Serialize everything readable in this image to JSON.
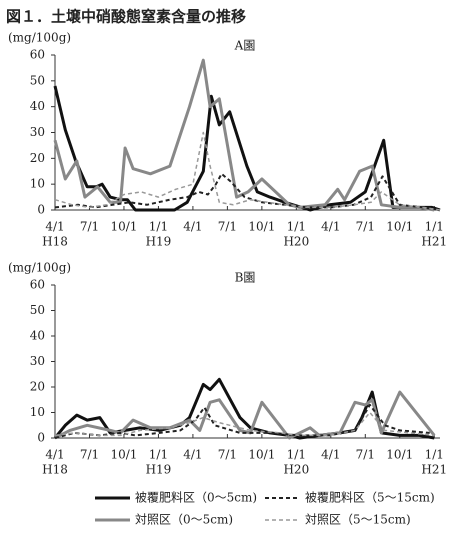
{
  "title": "図１．土壌中硝酸態窒素含量の推移",
  "chart_data": [
    {
      "type": "line",
      "title": "A園",
      "y_label": "(mg/100g)",
      "ylim": [
        0,
        60
      ],
      "yticks": [
        0,
        10,
        20,
        30,
        40,
        50,
        60
      ],
      "xlim": [
        0,
        33.5
      ],
      "xticks": [
        {
          "value": 0,
          "label": "4/1"
        },
        {
          "value": 3,
          "label": "7/1"
        },
        {
          "value": 6,
          "label": "10/1"
        },
        {
          "value": 9,
          "label": "1/1"
        },
        {
          "value": 12,
          "label": "4/1"
        },
        {
          "value": 15,
          "label": "7/1"
        },
        {
          "value": 18,
          "label": "10/1"
        },
        {
          "value": 21,
          "label": "1/1"
        },
        {
          "value": 24,
          "label": "4/1"
        },
        {
          "value": 27,
          "label": "7/1"
        },
        {
          "value": 30,
          "label": "10/1"
        },
        {
          "value": 33,
          "label": "1/1"
        }
      ],
      "year_labels": [
        {
          "value": 0,
          "label": "H18"
        },
        {
          "value": 9,
          "label": "H19"
        },
        {
          "value": 21,
          "label": "H20"
        },
        {
          "value": 33,
          "label": "H21"
        }
      ],
      "series": [
        {
          "name": "被覆肥料区（0～5cm)",
          "color": "#111111",
          "linestyle": "solid",
          "width": 3,
          "x": [
            0,
            0.9,
            1.8,
            2.8,
            3.6,
            4.1,
            4.8,
            5.7,
            6.3,
            7.0,
            8.3,
            10.4,
            11.5,
            12.9,
            13.6,
            14.3,
            15.2,
            16.7,
            17.6,
            18.7,
            20.0,
            22.2,
            23.9,
            25.7,
            27.0,
            28.6,
            29.4,
            31.0,
            32.8,
            33.5
          ],
          "values": [
            48,
            31,
            19,
            9,
            9,
            10,
            5,
            4,
            4,
            0,
            0,
            0,
            3,
            15,
            44,
            33,
            38,
            17,
            7,
            5,
            3,
            0,
            2,
            3,
            7,
            27,
            1,
            1,
            1,
            0
          ]
        },
        {
          "name": "対照区（0～5cm)",
          "color": "#888888",
          "linestyle": "solid",
          "width": 3,
          "x": [
            0,
            0.9,
            1.9,
            2.6,
            3.7,
            4.8,
            5.7,
            6.1,
            6.8,
            8.3,
            10.0,
            11.7,
            12.9,
            13.5,
            14.3,
            15.8,
            16.8,
            18.0,
            20.4,
            21.3,
            23.5,
            24.6,
            25.2,
            26.5,
            27.6,
            28.4,
            30.0,
            31.7,
            33.0
          ],
          "values": [
            27,
            12,
            19,
            5,
            9,
            3,
            3,
            24,
            16,
            14,
            17,
            40,
            58,
            40,
            43,
            5,
            7,
            12,
            2,
            1,
            2,
            8,
            4,
            15,
            17,
            2,
            1,
            1,
            0
          ]
        },
        {
          "name": "被覆肥料区（5～15cm)",
          "color": "#222222",
          "linestyle": "dashed",
          "width": 2,
          "x": [
            0,
            2,
            3.5,
            5,
            6.5,
            8,
            10,
            11.5,
            12.5,
            13.3,
            14,
            14.5,
            15.3,
            16.5,
            18,
            20,
            22,
            24,
            26,
            27.5,
            28.5,
            30,
            32,
            33.5
          ],
          "values": [
            1,
            2,
            1,
            2,
            3,
            2,
            4,
            5,
            7,
            6,
            10,
            14,
            11,
            5,
            3,
            2,
            1,
            1,
            2,
            5,
            13,
            2,
            1,
            0
          ]
        },
        {
          "name": "対照区（5～15cm)",
          "color": "#999999",
          "linestyle": "dashed",
          "width": 1.5,
          "x": [
            0,
            1.5,
            3,
            4.5,
            6,
            7.5,
            9,
            10.5,
            12,
            12.9,
            13.5,
            14.3,
            15.5,
            17,
            18.5,
            20,
            22,
            24,
            26,
            27.5,
            28.4,
            30,
            32,
            33.5
          ],
          "values": [
            4,
            2,
            1,
            2,
            6,
            7,
            5,
            8,
            10,
            30,
            17,
            3,
            2,
            4,
            3,
            2,
            1,
            1,
            2,
            3,
            7,
            2,
            1,
            0
          ]
        }
      ]
    },
    {
      "type": "line",
      "title": "B園",
      "y_label": "(mg/100g)",
      "ylim": [
        0,
        60
      ],
      "yticks": [
        0,
        10,
        20,
        30,
        40,
        50,
        60
      ],
      "xlim": [
        0,
        33.5
      ],
      "xticks": [
        {
          "value": 0,
          "label": "4/1"
        },
        {
          "value": 3,
          "label": "7/1"
        },
        {
          "value": 6,
          "label": "10/1"
        },
        {
          "value": 9,
          "label": "1/1"
        },
        {
          "value": 12,
          "label": "4/1"
        },
        {
          "value": 15,
          "label": "7/1"
        },
        {
          "value": 18,
          "label": "10/1"
        },
        {
          "value": 21,
          "label": "1/1"
        },
        {
          "value": 24,
          "label": "4/1"
        },
        {
          "value": 27,
          "label": "7/1"
        },
        {
          "value": 30,
          "label": "10/1"
        },
        {
          "value": 33,
          "label": "1/1"
        }
      ],
      "year_labels": [
        {
          "value": 0,
          "label": "H18"
        },
        {
          "value": 9,
          "label": "H19"
        },
        {
          "value": 21,
          "label": "H20"
        },
        {
          "value": 33,
          "label": "H21"
        }
      ],
      "series": [
        {
          "name": "被覆肥料区（0～5cm)",
          "color": "#111111",
          "linestyle": "solid",
          "width": 3,
          "x": [
            0,
            0.9,
            1.9,
            2.8,
            3.9,
            4.8,
            6.1,
            7.4,
            9.1,
            10.9,
            11.7,
            12.9,
            13.5,
            14.3,
            16.1,
            17.0,
            18.7,
            20.4,
            21.3,
            23.0,
            24.8,
            26.1,
            26.7,
            27.6,
            28.4,
            30.0,
            31.7,
            33.0
          ],
          "values": [
            0,
            5,
            9,
            7,
            8,
            2,
            3,
            4,
            3,
            5,
            8,
            21,
            19,
            23,
            8,
            4,
            2,
            1,
            0,
            1,
            2,
            3,
            8,
            18,
            2,
            1,
            1,
            0
          ]
        },
        {
          "name": "対照区（0～5cm)",
          "color": "#888888",
          "linestyle": "solid",
          "width": 3,
          "x": [
            0,
            1.3,
            2.8,
            4.8,
            5.7,
            6.8,
            8.3,
            10.0,
            11.7,
            12.6,
            13.5,
            14.3,
            16.1,
            17.0,
            18.0,
            20.4,
            22.2,
            23.0,
            24.8,
            26.1,
            27.0,
            27.6,
            28.4,
            30.0,
            33.0
          ],
          "values": [
            0,
            3,
            5,
            3,
            2,
            7,
            4,
            4,
            7,
            3,
            14,
            15,
            3,
            2,
            14,
            0,
            4,
            1,
            2,
            14,
            13,
            15,
            2,
            18,
            1
          ]
        },
        {
          "name": "被覆肥料区（5～15cm)",
          "color": "#222222",
          "linestyle": "dashed",
          "width": 2,
          "x": [
            0,
            1.7,
            3.9,
            5.7,
            7.0,
            9.1,
            10.9,
            12.2,
            13.0,
            13.9,
            16.1,
            18.7,
            21.3,
            23.9,
            26.1,
            27.4,
            28.7,
            30.0,
            32.6
          ],
          "values": [
            0,
            2,
            1,
            2,
            1,
            2,
            3,
            7,
            12,
            5,
            2,
            2,
            1,
            1,
            3,
            13,
            5,
            3,
            2
          ]
        },
        {
          "name": "対照区（5～15cm)",
          "color": "#999999",
          "linestyle": "dashed",
          "width": 1.5,
          "x": [
            0,
            1.7,
            3.9,
            5.7,
            7.4,
            10.0,
            11.7,
            12.9,
            14.3,
            17.0,
            19.6,
            21.3,
            23.9,
            26.1,
            27.4,
            28.7,
            30.9,
            33.0
          ],
          "values": [
            1,
            2,
            1,
            1,
            3,
            4,
            6,
            8,
            6,
            3,
            2,
            1,
            1,
            3,
            10,
            3,
            2,
            1
          ]
        }
      ]
    }
  ]
}
